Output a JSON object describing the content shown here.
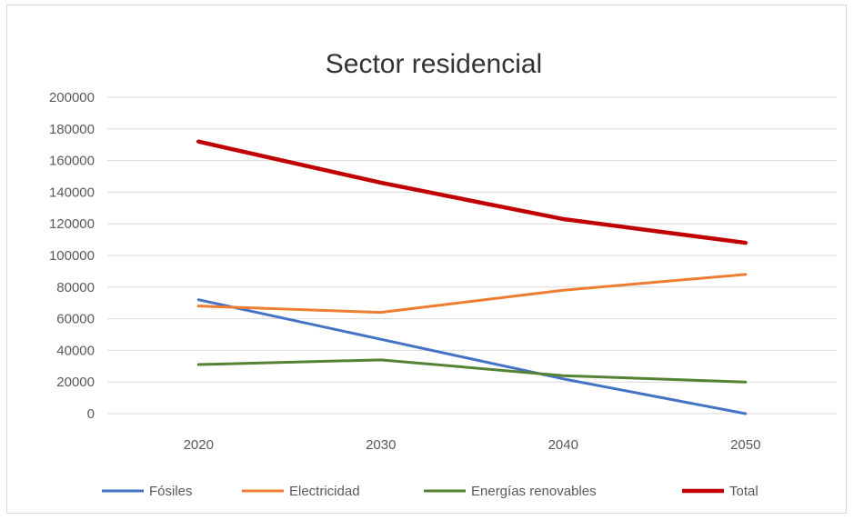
{
  "chart_data": {
    "type": "line",
    "title": "Sector residencial",
    "xlabel": "",
    "ylabel": "",
    "categories": [
      "2020",
      "2030",
      "2040",
      "2050"
    ],
    "ylim": [
      0,
      200000
    ],
    "yticks": [
      0,
      20000,
      40000,
      60000,
      80000,
      100000,
      120000,
      140000,
      160000,
      180000,
      200000
    ],
    "ytick_labels": [
      "0",
      "20000",
      "40000",
      "60000",
      "80000",
      "100000",
      "120000",
      "140000",
      "160000",
      "180000",
      "200000"
    ],
    "grid": true,
    "legend_position": "bottom",
    "series": [
      {
        "name": "Fósiles",
        "color": "#4472c4",
        "values": [
          72000,
          47000,
          22000,
          0
        ]
      },
      {
        "name": "Electricidad",
        "color": "#ed7d31",
        "values": [
          68000,
          64000,
          78000,
          88000
        ]
      },
      {
        "name": "Energías renovables",
        "color": "#548235",
        "values": [
          31000,
          34000,
          24000,
          20000
        ]
      },
      {
        "name": "Total",
        "color": "#c00000",
        "values": [
          172000,
          146000,
          123000,
          108000
        ]
      }
    ]
  }
}
